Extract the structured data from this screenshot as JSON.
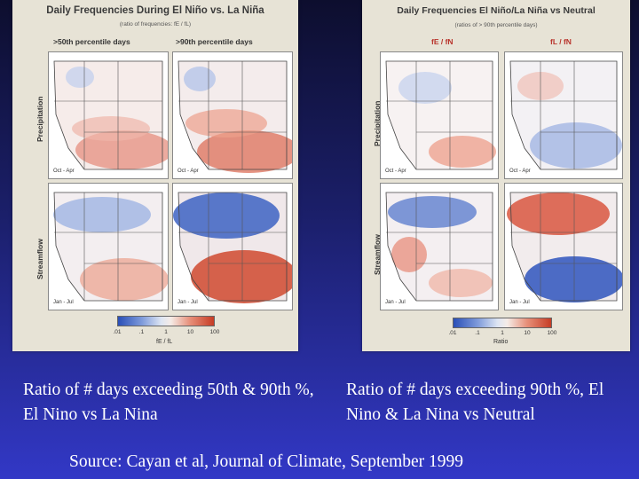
{
  "left_figure": {
    "title": "Daily Frequencies During El Niño vs. La Niña",
    "subtitle": "(ratio of frequencies: fE / fL)",
    "col1": ">50th percentile days",
    "col2": ">90th percentile days",
    "row1": "Precipitation",
    "row2": "Streamflow",
    "season1": "Oct - Apr",
    "season2": "Jan - Jul",
    "colorbar_ticks": [
      ".01",
      ".1",
      "1",
      "10",
      "100"
    ],
    "colorbar_label": "fE / fL"
  },
  "right_figure": {
    "title": "Daily Frequencies El Niño/La Niña vs Neutral",
    "subtitle": "(ratios of > 90th percentile days)",
    "col1": "fE / fN",
    "col2": "fL / fN",
    "row1": "Precipitation",
    "row2": "Streamflow",
    "season1": "Oct - Apr",
    "season2": "Jan - Jul",
    "colorbar_ticks": [
      ".01",
      ".1",
      "1",
      "10",
      "100"
    ],
    "colorbar_label": "Ratio"
  },
  "captions": {
    "left": "Ratio of # days exceeding 50th & 90th %, El Nino vs La Nina",
    "right": "Ratio of # days exceeding 90th %, El Nino & La Nina vs Neutral"
  },
  "source": "Source: Cayan et al, Journal of Climate, September 1999"
}
